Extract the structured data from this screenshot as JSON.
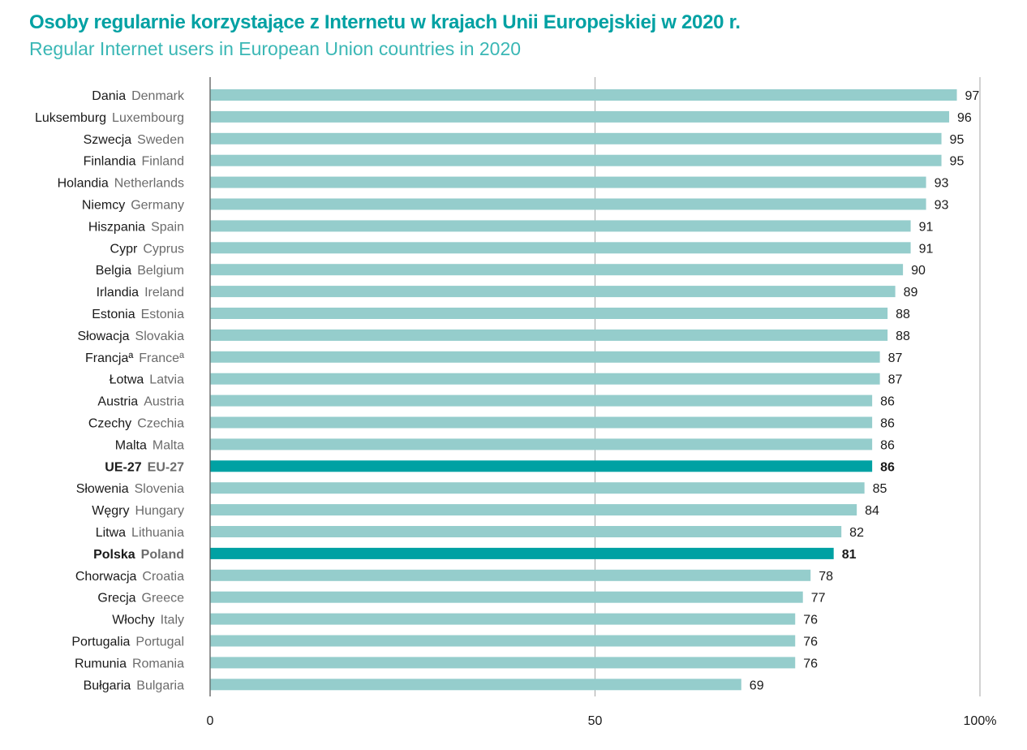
{
  "chart_data": {
    "type": "bar",
    "orientation": "horizontal",
    "title": "Osoby regularnie korzystające z Internetu w krajach Unii Europejskiej w 2020 r.",
    "subtitle": "Regular Internet users in European Union countries in 2020",
    "xlim": [
      0,
      100
    ],
    "xticks": [
      "0",
      "50",
      "100%"
    ],
    "xtick_values": [
      0,
      50,
      100
    ],
    "grid": "vertical",
    "colors": {
      "bar": "#95cdcc",
      "highlight": "#00a1a3",
      "title_pl": "#00a1a3",
      "title_en": "#3ab7b5",
      "gridline": "#a6a6a6"
    },
    "bars": [
      {
        "pl": "Dania",
        "en": "Denmark",
        "value": 97
      },
      {
        "pl": "Luksemburg",
        "en": "Luxembourg",
        "value": 96
      },
      {
        "pl": "Szwecja",
        "en": "Sweden",
        "value": 95
      },
      {
        "pl": "Finlandia",
        "en": "Finland",
        "value": 95
      },
      {
        "pl": "Holandia",
        "en": "Netherlands",
        "value": 93
      },
      {
        "pl": "Niemcy",
        "en": "Germany",
        "value": 93
      },
      {
        "pl": "Hiszpania",
        "en": "Spain",
        "value": 91
      },
      {
        "pl": "Cypr",
        "en": "Cyprus",
        "value": 91
      },
      {
        "pl": "Belgia",
        "en": "Belgium",
        "value": 90
      },
      {
        "pl": "Irlandia",
        "en": "Ireland",
        "value": 89
      },
      {
        "pl": "Estonia",
        "en": "Estonia",
        "value": 88
      },
      {
        "pl": "Słowacja",
        "en": "Slovakia",
        "value": 88
      },
      {
        "pl": "Francjaª",
        "en": "Franceª",
        "value": 87
      },
      {
        "pl": "Łotwa",
        "en": "Latvia",
        "value": 87
      },
      {
        "pl": "Austria",
        "en": "Austria",
        "value": 86
      },
      {
        "pl": "Czechy",
        "en": "Czechia",
        "value": 86
      },
      {
        "pl": "Malta",
        "en": "Malta",
        "value": 86
      },
      {
        "pl": "UE-27",
        "en": "EU-27",
        "value": 86,
        "highlight": true
      },
      {
        "pl": "Słowenia",
        "en": "Slovenia",
        "value": 85
      },
      {
        "pl": "Węgry",
        "en": "Hungary",
        "value": 84
      },
      {
        "pl": "Litwa",
        "en": "Lithuania",
        "value": 82
      },
      {
        "pl": "Polska",
        "en": "Poland",
        "value": 81,
        "highlight": true
      },
      {
        "pl": "Chorwacja",
        "en": "Croatia",
        "value": 78
      },
      {
        "pl": "Grecja",
        "en": "Greece",
        "value": 77
      },
      {
        "pl": "Włochy",
        "en": "Italy",
        "value": 76
      },
      {
        "pl": "Portugalia",
        "en": "Portugal",
        "value": 76
      },
      {
        "pl": "Rumunia",
        "en": "Romania",
        "value": 76
      },
      {
        "pl": "Bułgaria",
        "en": "Bulgaria",
        "value": 69
      }
    ]
  }
}
